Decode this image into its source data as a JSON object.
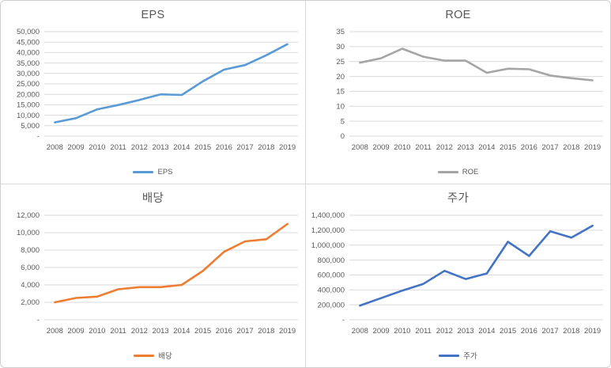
{
  "page": {
    "background": "#ffffff",
    "divider_color": "#d9d9d9",
    "gridline_color": "#d9d9d9",
    "text_color": "#595959"
  },
  "chart_data": [
    {
      "id": "eps",
      "type": "line",
      "title": "EPS",
      "legend_label": "EPS",
      "line_color": "#5b9bd5",
      "legend_position": "bottom",
      "grid": true,
      "x": [
        "2008",
        "2009",
        "2010",
        "2011",
        "2012",
        "2013",
        "2014",
        "2015",
        "2016",
        "2017",
        "2018",
        "2019"
      ],
      "values": [
        6600,
        8600,
        12800,
        14900,
        17300,
        20000,
        19700,
        26200,
        31800,
        34000,
        38700,
        44000
      ],
      "ylim": [
        0,
        50000
      ],
      "ytick_labels_bottom_to_top": [
        "-",
        "5,000",
        "10,000",
        "15,000",
        "20,000",
        "25,000",
        "30,000",
        "35,000",
        "40,000",
        "45,000",
        "50,000"
      ]
    },
    {
      "id": "roe",
      "type": "line",
      "title": "ROE",
      "legend_label": "ROE",
      "line_color": "#a5a5a5",
      "legend_position": "bottom",
      "grid": true,
      "x": [
        "2008",
        "2009",
        "2010",
        "2011",
        "2012",
        "2013",
        "2014",
        "2015",
        "2016",
        "2017",
        "2018",
        "2019"
      ],
      "values": [
        24.6,
        26.1,
        29.3,
        26.6,
        25.3,
        25.3,
        21.2,
        22.6,
        22.4,
        20.3,
        19.4,
        18.7
      ],
      "ylim": [
        0,
        35
      ],
      "ytick_labels_bottom_to_top": [
        "0",
        "5",
        "10",
        "15",
        "20",
        "25",
        "30",
        "35"
      ]
    },
    {
      "id": "dividend",
      "type": "line",
      "title": "배당",
      "legend_label": "배당",
      "line_color": "#ed7d31",
      "legend_position": "bottom",
      "grid": true,
      "x": [
        "2008",
        "2009",
        "2010",
        "2011",
        "2012",
        "2013",
        "2014",
        "2015",
        "2016",
        "2017",
        "2018",
        "2019"
      ],
      "values": [
        2000,
        2500,
        2650,
        3500,
        3750,
        3750,
        4000,
        5600,
        7800,
        9000,
        9250,
        11000
      ],
      "ylim": [
        0,
        12000
      ],
      "ytick_labels_bottom_to_top": [
        "-",
        "2,000",
        "4,000",
        "6,000",
        "8,000",
        "10,000",
        "12,000"
      ]
    },
    {
      "id": "stock-price",
      "type": "line",
      "title": "주가",
      "legend_label": "주가",
      "line_color": "#4472c4",
      "legend_position": "bottom",
      "grid": true,
      "x": [
        "2008",
        "2009",
        "2010",
        "2011",
        "2012",
        "2013",
        "2014",
        "2015",
        "2016",
        "2017",
        "2018",
        "2019"
      ],
      "values": [
        190000,
        290000,
        390000,
        480000,
        655000,
        545000,
        620000,
        1045000,
        855000,
        1185000,
        1100000,
        1260000
      ],
      "ylim": [
        0,
        1400000
      ],
      "ytick_labels_bottom_to_top": [
        "-",
        "200,000",
        "400,000",
        "600,000",
        "800,000",
        "1,000,000",
        "1,200,000",
        "1,400,000"
      ]
    }
  ]
}
